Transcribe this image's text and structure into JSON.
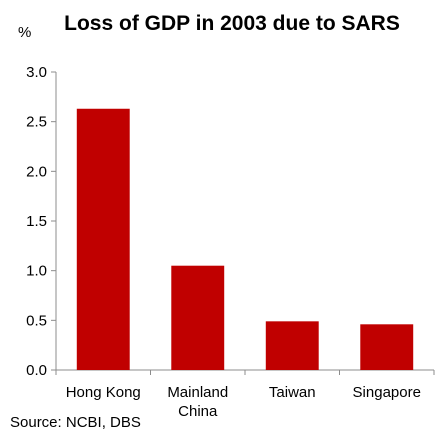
{
  "chart_data": {
    "type": "bar",
    "title": "Loss of GDP in 2003 due to SARS",
    "ylabel": "%",
    "xlabel": "",
    "categories": [
      [
        "Hong Kong"
      ],
      [
        "Mainland",
        "China"
      ],
      [
        "Taiwan"
      ],
      [
        "Singapore"
      ]
    ],
    "values": [
      2.63,
      1.05,
      0.49,
      0.46
    ],
    "ylim": [
      0,
      3
    ],
    "yticks": [
      "0.0",
      "0.5",
      "1.0",
      "1.5",
      "2.0",
      "2.5",
      "3.0"
    ],
    "bar_color": "#c00000",
    "grid": false,
    "legend": "none"
  },
  "source": "Source: NCBI, DBS"
}
